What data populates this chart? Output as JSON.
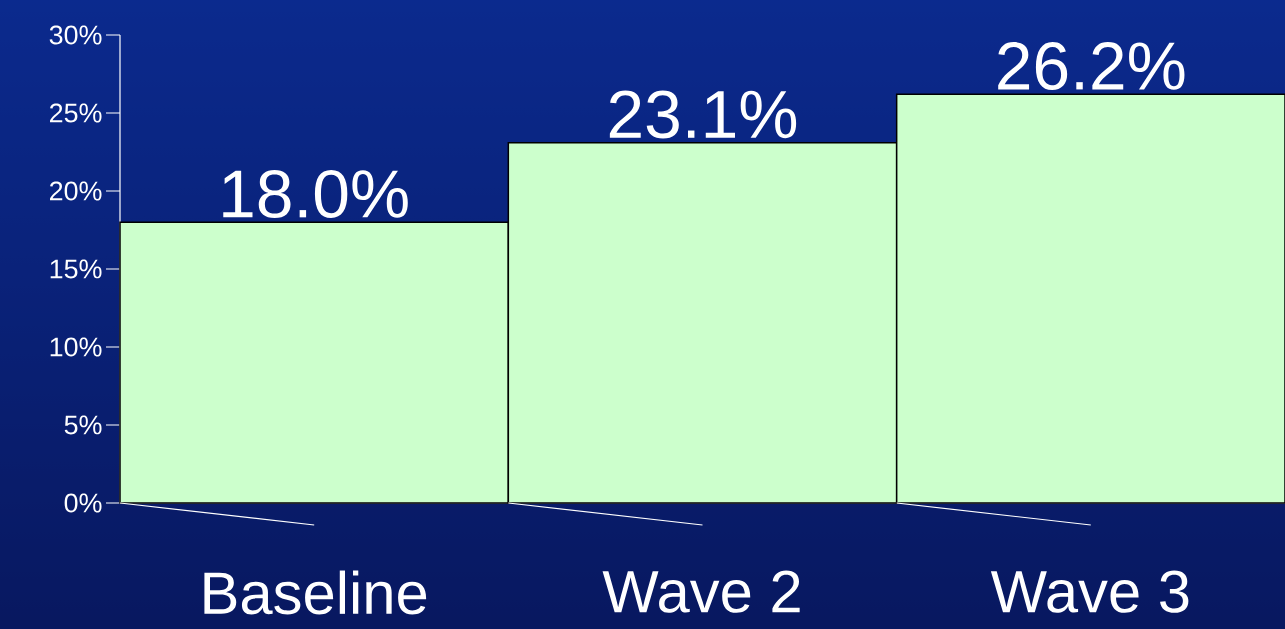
{
  "chart_data": {
    "type": "bar",
    "categories": [
      "Baseline",
      "Wave 2",
      "Wave 3"
    ],
    "values": [
      18.0,
      23.1,
      26.2
    ],
    "color": "#ccffcc",
    "value_labels": [
      "18.0%",
      "23.1%",
      "26.2%"
    ],
    "ylim": [
      0,
      30
    ],
    "yticks": [
      {
        "value": 0,
        "label": "0%"
      },
      {
        "value": 5,
        "label": "5%"
      },
      {
        "value": 10,
        "label": "10%"
      },
      {
        "value": 15,
        "label": "15%"
      },
      {
        "value": 20,
        "label": "20%"
      },
      {
        "value": 25,
        "label": "25%"
      },
      {
        "value": 30,
        "label": "30%"
      }
    ]
  }
}
